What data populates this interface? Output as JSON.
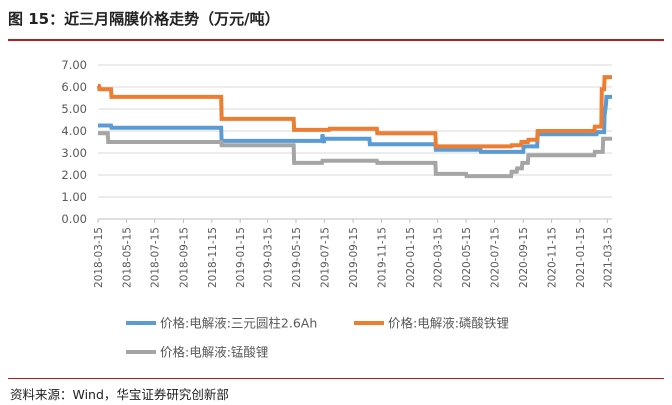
{
  "figure": {
    "title": "图 15：近三月隔膜价格走势（万元/吨）",
    "source": "资料来源：Wind，华宝证券研究创新部"
  },
  "chart_data": {
    "type": "line",
    "title": "图 15：近三月隔膜价格走势（万元/吨）",
    "xlabel": "",
    "ylabel": "",
    "ylim": [
      0,
      7
    ],
    "yticks": [
      "0.00",
      "1.00",
      "2.00",
      "3.00",
      "4.00",
      "5.00",
      "6.00",
      "7.00"
    ],
    "xlim": [
      "2018-03-15",
      "2021-03-25"
    ],
    "xticks": [
      "2018-03-15",
      "2018-05-15",
      "2018-07-15",
      "2018-09-15",
      "2018-11-15",
      "2019-01-15",
      "2019-03-15",
      "2019-05-15",
      "2019-07-15",
      "2019-09-15",
      "2019-11-15",
      "2020-01-15",
      "2020-03-15",
      "2020-05-15",
      "2020-07-15",
      "2020-09-15",
      "2020-11-15",
      "2021-01-15",
      "2021-03-15"
    ],
    "grid": true,
    "legend_position": "bottom",
    "series": [
      {
        "name": "价格:电解液:三元圆柱2.6Ah",
        "color": "#5b9bd5",
        "x": [
          "2018-03-15",
          "2018-04-12",
          "2018-04-13",
          "2018-12-05",
          "2018-12-06",
          "2019-07-10",
          "2019-07-11",
          "2019-07-14",
          "2019-07-15",
          "2019-10-20",
          "2019-10-21",
          "2020-03-10",
          "2020-03-11",
          "2020-06-15",
          "2020-06-16",
          "2020-09-15",
          "2020-09-16",
          "2020-10-15",
          "2020-10-16",
          "2021-02-20",
          "2021-02-21",
          "2021-03-08",
          "2021-03-09",
          "2021-03-12",
          "2021-03-13",
          "2021-03-25"
        ],
        "values": [
          4.25,
          4.25,
          4.15,
          4.15,
          3.55,
          3.55,
          3.85,
          3.45,
          3.65,
          3.65,
          3.4,
          3.4,
          3.15,
          3.15,
          3.05,
          3.05,
          3.3,
          3.3,
          3.85,
          3.85,
          3.95,
          3.95,
          4.7,
          5.2,
          5.55,
          5.55
        ]
      },
      {
        "name": "价格:电解液:磷酸铁锂",
        "color": "#ed7d31",
        "x": [
          "2018-03-15",
          "2018-03-17",
          "2018-03-18",
          "2018-04-12",
          "2018-04-13",
          "2018-12-05",
          "2018-12-06",
          "2019-05-10",
          "2019-05-11",
          "2019-07-25",
          "2019-07-26",
          "2019-11-05",
          "2019-11-06",
          "2020-03-10",
          "2020-03-11",
          "2020-08-20",
          "2020-08-21",
          "2020-09-10",
          "2020-09-11",
          "2020-09-25",
          "2020-09-26",
          "2020-10-15",
          "2020-10-16",
          "2021-02-15",
          "2021-02-16",
          "2021-03-02",
          "2021-03-03",
          "2021-03-08",
          "2021-03-09",
          "2021-03-25"
        ],
        "values": [
          6.05,
          6.05,
          5.9,
          5.9,
          5.55,
          5.55,
          4.55,
          4.55,
          4.05,
          4.05,
          4.1,
          4.1,
          3.9,
          3.9,
          3.3,
          3.3,
          3.35,
          3.35,
          3.5,
          3.5,
          3.6,
          3.6,
          4.0,
          4.0,
          4.2,
          4.2,
          5.9,
          5.9,
          6.45,
          6.45
        ]
      },
      {
        "name": "价格:电解液:锰酸锂",
        "color": "#a5a5a5",
        "x": [
          "2018-03-15",
          "2018-04-05",
          "2018-04-06",
          "2018-12-05",
          "2018-12-06",
          "2019-05-10",
          "2019-05-11",
          "2019-07-10",
          "2019-07-11",
          "2019-11-05",
          "2019-11-06",
          "2020-03-10",
          "2020-03-11",
          "2020-05-15",
          "2020-05-16",
          "2020-08-20",
          "2020-08-21",
          "2020-09-01",
          "2020-09-02",
          "2020-09-12",
          "2020-09-13",
          "2020-09-25",
          "2020-09-26",
          "2021-02-15",
          "2021-02-16",
          "2021-03-05",
          "2021-03-06",
          "2021-03-25"
        ],
        "values": [
          3.9,
          3.9,
          3.5,
          3.5,
          3.35,
          3.35,
          2.55,
          2.55,
          2.65,
          2.65,
          2.55,
          2.55,
          2.05,
          2.05,
          1.95,
          1.95,
          2.15,
          2.15,
          2.3,
          2.3,
          2.55,
          2.55,
          2.9,
          2.9,
          3.05,
          3.05,
          3.65,
          3.65
        ]
      }
    ]
  }
}
